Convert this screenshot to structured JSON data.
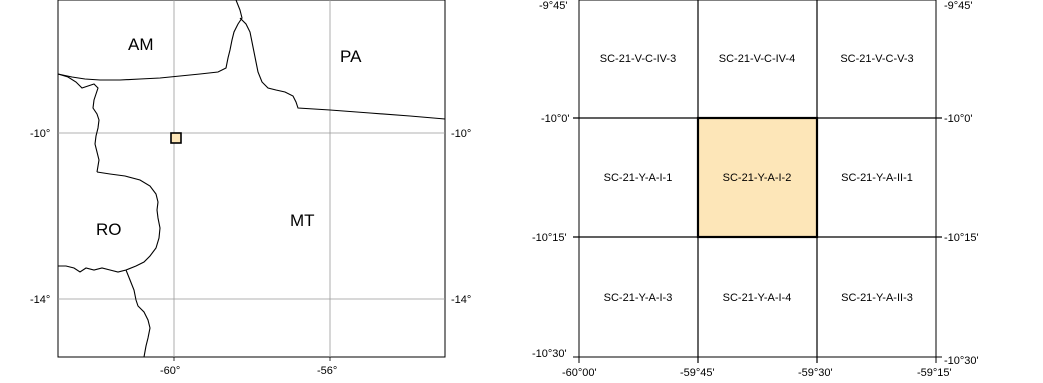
{
  "colors": {
    "highlight_fill": "#fde6b8",
    "line": "#000000",
    "grid": "#999999",
    "background": "#ffffff"
  },
  "overview_map": {
    "x_ticks": [
      "-60°",
      "-56°"
    ],
    "y_ticks": [
      "-10°",
      "-14°"
    ],
    "states": [
      {
        "name": "AM"
      },
      {
        "name": "PA"
      },
      {
        "name": "RO"
      },
      {
        "name": "MT"
      }
    ]
  },
  "grid_map": {
    "top_ticks": [
      "-9°45'"
    ],
    "x_ticks": [
      "-60°00'",
      "-59°45'",
      "-59°30'",
      "-59°15'"
    ],
    "left_y_ticks": [
      "-9°45'",
      "-10°0'",
      "-10°15'",
      "-10°30'"
    ],
    "right_y_ticks": [
      "-9°45'",
      "-10°0'",
      "-10°15'",
      "-10°30'"
    ],
    "cells": [
      [
        "SC-21-V-C-IV-3",
        "SC-21-V-C-IV-4",
        "SC-21-V-C-V-3"
      ],
      [
        "SC-21-Y-A-I-1",
        "SC-21-Y-A-I-2",
        "SC-21-Y-A-II-1"
      ],
      [
        "SC-21-Y-A-I-3",
        "SC-21-Y-A-I-4",
        "SC-21-Y-A-II-3"
      ]
    ],
    "highlighted_cell": "SC-21-Y-A-I-2"
  }
}
